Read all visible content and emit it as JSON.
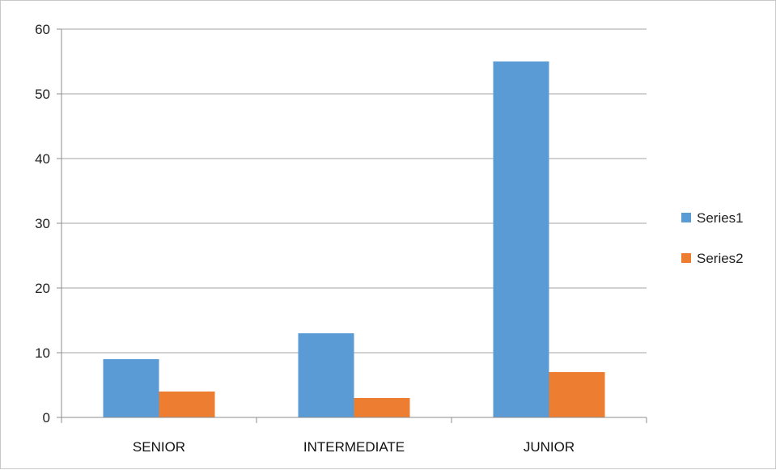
{
  "chart_data": {
    "type": "bar",
    "title": "",
    "xlabel": "",
    "ylabel": "",
    "categories": [
      "SENIOR",
      "INTERMEDIATE",
      "JUNIOR"
    ],
    "series": [
      {
        "name": "Series1",
        "values": [
          9,
          13,
          55
        ],
        "color": "#5B9BD5"
      },
      {
        "name": "Series2",
        "values": [
          4,
          3,
          7
        ],
        "color": "#ED7D31"
      }
    ],
    "ylim": [
      0,
      60
    ],
    "yticks": [
      0,
      10,
      20,
      30,
      40,
      50,
      60
    ],
    "grid": true,
    "legend_position": "right"
  }
}
